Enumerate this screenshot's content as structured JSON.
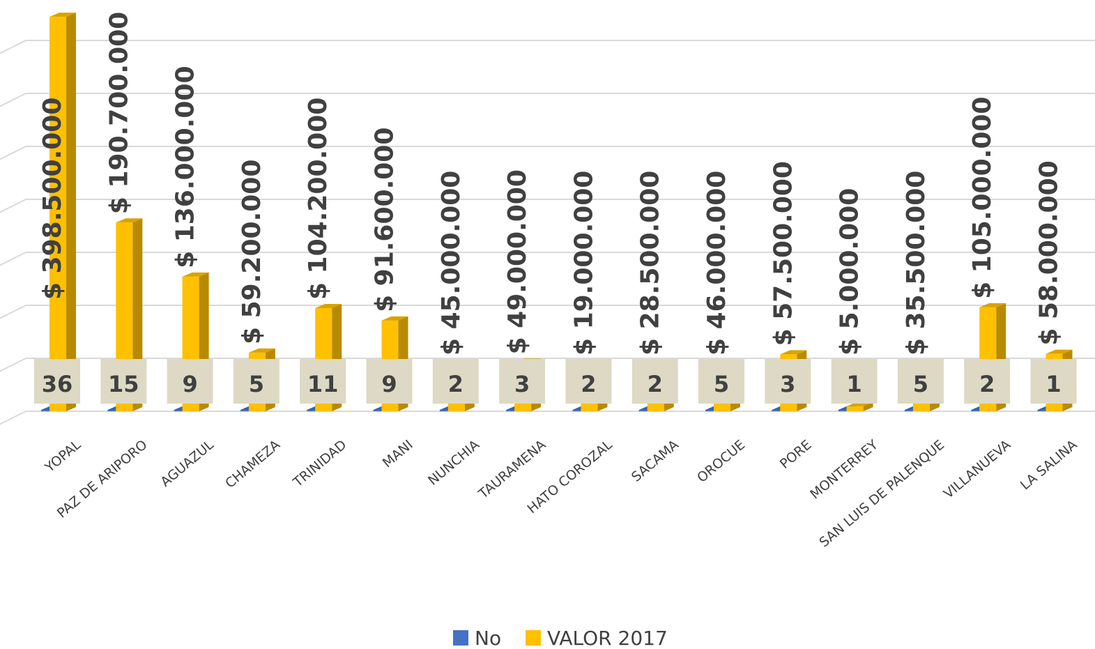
{
  "chart_data": {
    "type": "bar",
    "categories": [
      "YOPAL",
      "PAZ DE ARIPORO",
      "AGUAZUL",
      "CHAMEZA",
      "TRINIDAD",
      "MANI",
      "NUNCHIA",
      "TAURAMENA",
      "HATO COROZAL",
      "SACAMA",
      "OROCUE",
      "PORE",
      "MONTERREY",
      "SAN LUIS DE PALENQUE",
      "VILLANUEVA",
      "LA SALINA"
    ],
    "series": [
      {
        "name": "No",
        "values": [
          36,
          15,
          9,
          5,
          11,
          9,
          2,
          3,
          2,
          2,
          5,
          3,
          1,
          5,
          2,
          1
        ],
        "labels": [
          "36",
          "15",
          "9",
          "5",
          "11",
          "9",
          "2",
          "3",
          "2",
          "2",
          "5",
          "3",
          "1",
          "5",
          "2",
          "1"
        ],
        "color": "#4472c4"
      },
      {
        "name": "VALOR 2017",
        "values": [
          398500000,
          190700000,
          136000000,
          59200000,
          104200000,
          91600000,
          45000000,
          49000000,
          19000000,
          28500000,
          46000000,
          57500000,
          5000000,
          35500000,
          105000000,
          58000000
        ],
        "labels": [
          "$ 398.500.000",
          "$ 190.700.000",
          "$ 136.000.000",
          "$ 59.200.000",
          "$ 104.200.000",
          "$ 91.600.000",
          "$ 45.000.000",
          "$ 49.000.000",
          "$ 19.000.000",
          "$ 28.500.000",
          "$ 46.000.000",
          "$ 57.500.000",
          "$ 5.000.000",
          "$ 35.500.000",
          "$ 105.000.000",
          "$ 58.000.000"
        ],
        "color": "#ffc000"
      }
    ],
    "ylim": [
      0,
      400000000
    ],
    "grid": true,
    "legend": "bottom",
    "style": "3d-clustered-column"
  }
}
